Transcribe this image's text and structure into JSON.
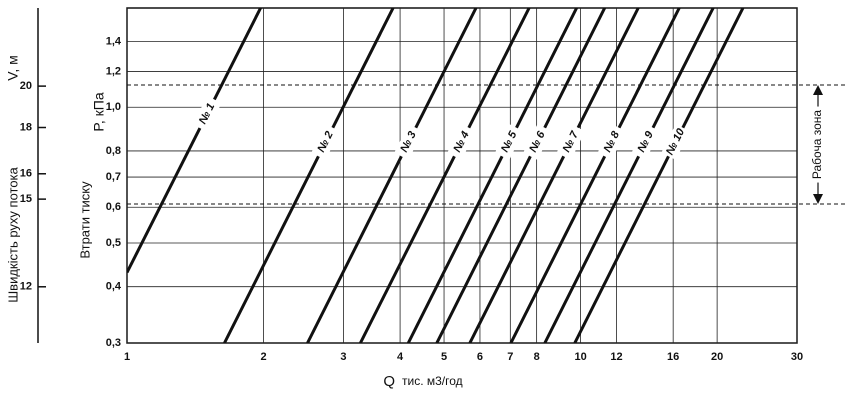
{
  "chart_data": {
    "type": "line",
    "xlabel": "Q",
    "xunit": "тис. м3/год",
    "ylabel": "P, кПа",
    "ylabel2": "Втрати тиску",
    "y2label": "V, м",
    "y2label2": "Швидкість руху потока",
    "xscale": "log",
    "yscale": "log",
    "grid": true,
    "color": "#111111",
    "xlim": [
      1,
      30
    ],
    "xticks": [
      1,
      2,
      3,
      4,
      5,
      6,
      7,
      8,
      10,
      12,
      16,
      20,
      30
    ],
    "ylim": [
      0.3,
      1.66
    ],
    "yticks": [
      {
        "value": 0.3,
        "label": "0,3"
      },
      {
        "value": 0.4,
        "label": "0,4"
      },
      {
        "value": 0.5,
        "label": "0,5"
      },
      {
        "value": 0.6,
        "label": "0,6"
      },
      {
        "value": 0.7,
        "label": "0,7"
      },
      {
        "value": 0.8,
        "label": "0,8"
      },
      {
        "value": 1.0,
        "label": "1,0"
      },
      {
        "value": 1.2,
        "label": "1,2"
      },
      {
        "value": 1.4,
        "label": "1,4"
      }
    ],
    "y2lim": [
      10.4,
      24.4
    ],
    "y2ticks": [
      12,
      15,
      16,
      18,
      20
    ],
    "zone": {
      "label": "Рабоча зона",
      "range": [
        0.61,
        1.12
      ]
    },
    "series": [
      {
        "name": "№ 1",
        "x": [
          1,
          1.97
        ],
        "values": [
          0.43,
          1.66
        ]
      },
      {
        "name": "№ 2",
        "x": [
          1.64,
          3.86
        ],
        "values": [
          0.3,
          1.66
        ]
      },
      {
        "name": "№ 3",
        "x": [
          2.5,
          5.88
        ],
        "values": [
          0.3,
          1.66
        ]
      },
      {
        "name": "№ 4",
        "x": [
          3.27,
          7.7
        ],
        "values": [
          0.3,
          1.66
        ]
      },
      {
        "name": "№ 5",
        "x": [
          4.17,
          9.8
        ],
        "values": [
          0.3,
          1.66
        ]
      },
      {
        "name": "№ 6",
        "x": [
          4.82,
          11.3
        ],
        "values": [
          0.3,
          1.66
        ]
      },
      {
        "name": "№ 7",
        "x": [
          5.7,
          13.4
        ],
        "values": [
          0.3,
          1.66
        ]
      },
      {
        "name": "№ 8",
        "x": [
          7.02,
          16.5
        ],
        "values": [
          0.3,
          1.66
        ]
      },
      {
        "name": "№ 9",
        "x": [
          8.34,
          19.6
        ],
        "values": [
          0.3,
          1.66
        ]
      },
      {
        "name": "№ 10",
        "x": [
          9.71,
          22.8
        ],
        "values": [
          0.3,
          1.66
        ]
      }
    ]
  }
}
